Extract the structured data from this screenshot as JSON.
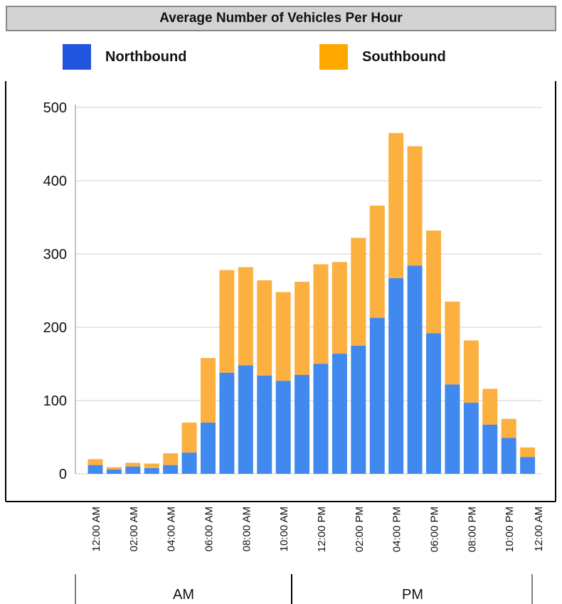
{
  "title": "Average Number of Vehicles Per Hour",
  "legend": [
    {
      "label": "Northbound",
      "color": "#2255dd"
    },
    {
      "label": "Southbound",
      "color": "#ffa800"
    }
  ],
  "chart_data": {
    "type": "bar",
    "stacked": true,
    "title": "Average Number of Vehicles Per Hour",
    "ylim": [
      0,
      500
    ],
    "y_ticks": [
      0,
      100,
      200,
      300,
      400,
      500
    ],
    "grid": true,
    "legend_position": "top",
    "categories": [
      "12:00 AM",
      "01:00 AM",
      "02:00 AM",
      "03:00 AM",
      "04:00 AM",
      "05:00 AM",
      "06:00 AM",
      "07:00 AM",
      "08:00 AM",
      "09:00 AM",
      "10:00 AM",
      "11:00 AM",
      "12:00 PM",
      "01:00 PM",
      "02:00 PM",
      "03:00 PM",
      "04:00 PM",
      "05:00 PM",
      "06:00 PM",
      "07:00 PM",
      "08:00 PM",
      "09:00 PM",
      "10:00 PM",
      "11:00 PM",
      "12:00 AM"
    ],
    "x_tick_labels": [
      "12:00 AM",
      "02:00 AM",
      "04:00 AM",
      "06:00 AM",
      "08:00 AM",
      "10:00 AM",
      "12:00 PM",
      "02:00 PM",
      "04:00 PM",
      "06:00 PM",
      "08:00 PM",
      "10:00 PM",
      "12:00 AM"
    ],
    "series": [
      {
        "name": "Northbound",
        "color": "#4189ee",
        "values": [
          12,
          6,
          10,
          8,
          12,
          29,
          70,
          138,
          148,
          134,
          127,
          135,
          150,
          164,
          175,
          213,
          267,
          284,
          192,
          122,
          97,
          67,
          49,
          23,
          0
        ]
      },
      {
        "name": "Southbound",
        "color": "#fbb040",
        "values": [
          8,
          3,
          5,
          6,
          16,
          41,
          88,
          140,
          134,
          130,
          121,
          127,
          136,
          125,
          147,
          153,
          198,
          163,
          140,
          113,
          85,
          49,
          26,
          13,
          0
        ]
      }
    ],
    "groups": [
      {
        "label": "AM"
      },
      {
        "label": "PM"
      }
    ]
  }
}
